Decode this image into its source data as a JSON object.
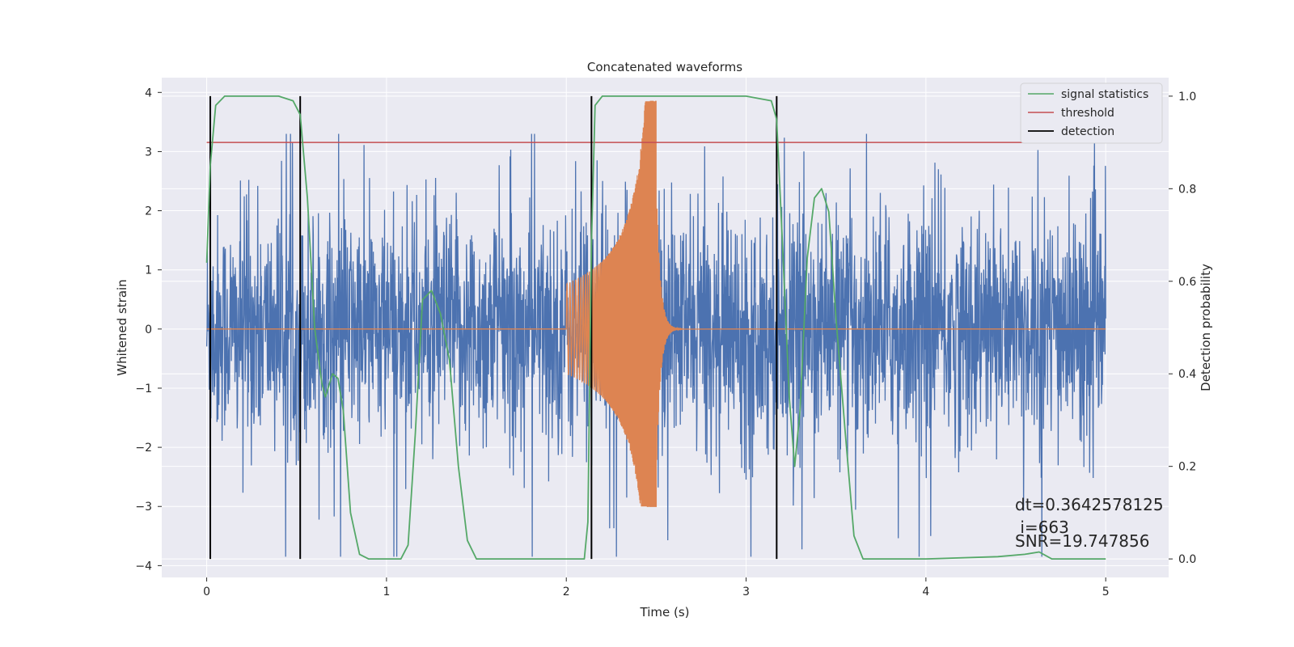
{
  "chart_data": {
    "type": "line",
    "title": "Concatenated waveforms",
    "xlabel": "Time (s)",
    "ylabel": "Whitened strain",
    "y2label": "Detection probability",
    "xlim": [
      -0.25,
      5.35
    ],
    "ylim": [
      -4.2,
      4.25
    ],
    "y2lim": [
      -0.04,
      1.04
    ],
    "xticks": [
      0,
      1,
      2,
      3,
      4,
      5
    ],
    "yticks": [
      -4,
      -3,
      -2,
      -1,
      0,
      1,
      2,
      3,
      4
    ],
    "y2ticks": [
      0.0,
      0.2,
      0.4,
      0.6,
      0.8,
      1.0
    ],
    "y2tick_labels": [
      "0.0",
      "0.2",
      "0.4",
      "0.6",
      "0.8",
      "1.0"
    ],
    "grid": true,
    "legend_position": "top-right",
    "colors": {
      "strain": "#4c72b0",
      "signal": "#dd8452",
      "statistics": "#55a868",
      "threshold": "#c44e52",
      "detection": "#000000",
      "plot_bg": "#eaeaf2",
      "grid": "#ffffff"
    },
    "series": [
      {
        "name": "signal statistics",
        "axis": "right",
        "x": [
          0.0,
          0.02,
          0.05,
          0.1,
          0.2,
          0.3,
          0.4,
          0.48,
          0.52,
          0.56,
          0.6,
          0.64,
          0.66,
          0.7,
          0.73,
          0.76,
          0.8,
          0.85,
          0.9,
          1.0,
          1.08,
          1.12,
          1.16,
          1.2,
          1.25,
          1.3,
          1.35,
          1.4,
          1.45,
          1.5,
          1.6,
          1.8,
          2.0,
          2.1,
          2.12,
          2.14,
          2.16,
          2.2,
          2.5,
          3.0,
          3.14,
          3.17,
          3.2,
          3.24,
          3.27,
          3.3,
          3.34,
          3.38,
          3.42,
          3.46,
          3.5,
          3.55,
          3.6,
          3.65,
          4.0,
          4.4,
          4.55,
          4.63,
          4.7,
          5.0
        ],
        "y": [
          0.64,
          0.85,
          0.98,
          1.0,
          1.0,
          1.0,
          1.0,
          0.99,
          0.96,
          0.78,
          0.5,
          0.38,
          0.35,
          0.4,
          0.39,
          0.32,
          0.1,
          0.01,
          0.0,
          0.0,
          0.0,
          0.03,
          0.27,
          0.56,
          0.58,
          0.53,
          0.43,
          0.2,
          0.04,
          0.0,
          0.0,
          0.0,
          0.0,
          0.0,
          0.08,
          0.68,
          0.98,
          1.0,
          1.0,
          1.0,
          0.99,
          0.95,
          0.7,
          0.35,
          0.2,
          0.32,
          0.65,
          0.78,
          0.8,
          0.75,
          0.52,
          0.28,
          0.05,
          0.0,
          0.0,
          0.005,
          0.01,
          0.015,
          0.0,
          0.0
        ]
      },
      {
        "name": "threshold",
        "axis": "right",
        "x": [
          0.0,
          5.1
        ],
        "y": [
          0.9,
          0.9
        ]
      },
      {
        "name": "detection",
        "axis": "right",
        "x": [
          0.02,
          0.52,
          2.14,
          3.17
        ],
        "y_range": [
          0.0,
          1.0
        ]
      }
    ],
    "annotations": {
      "dt": "dt=0.3642578125",
      "i": " i=663",
      "snr": "SNR=19.747856"
    }
  }
}
